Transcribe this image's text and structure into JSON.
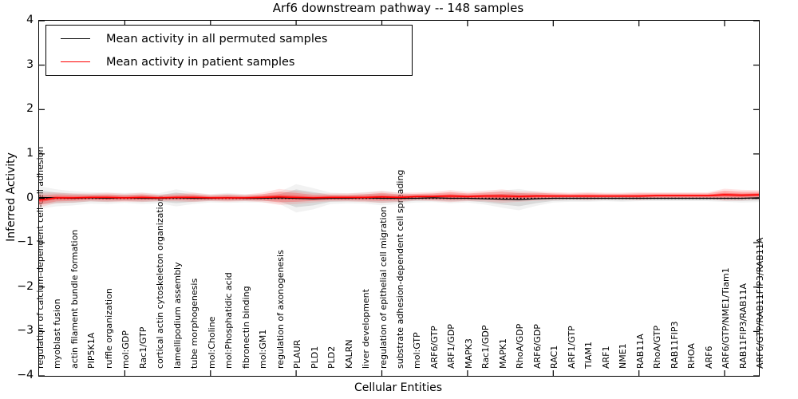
{
  "figure": {
    "title": "Arf6 downstream pathway -- 148 samples",
    "xlabel": "Cellular Entities",
    "ylabel": "Inferred Activity"
  },
  "legend": {
    "items": [
      {
        "label": "Mean activity in all permuted samples",
        "color": "#000000"
      },
      {
        "label": "Mean activity in patient samples",
        "color": "#ff0000"
      }
    ],
    "position": "upper left"
  },
  "chart_data": {
    "type": "line",
    "title": "Arf6 downstream pathway -- 148 samples",
    "xlabel": "Cellular Entities",
    "ylabel": "Inferred Activity",
    "ylim": [
      -4,
      4
    ],
    "yticks": [
      -4,
      -3,
      -2,
      -1,
      0,
      1,
      2,
      3,
      4
    ],
    "xtick_marks_every": 5,
    "grid": false,
    "legend_position": "upper left",
    "zero_line": {
      "style": "dotted",
      "color": "#000000",
      "y": 0
    },
    "categories": [
      "regulation of calcium-dependent cell-cell adhesion",
      "myoblast fusion",
      "actin filament bundle formation",
      "PIP5K1A",
      "ruffle organization",
      "mol:GDP",
      "Rac1/GTP",
      "cortical actin cytoskeleton organization",
      "lamellipodium assembly",
      "tube morphogenesis",
      "mol:Choline",
      "mol:Phosphatidic acid",
      "fibronectin binding",
      "mol:GM1",
      "regulation of axonogenesis",
      "PLAUR",
      "PLD1",
      "PLD2",
      "KALRN",
      "liver development",
      "regulation of epithelial cell migration",
      "substrate adhesion-dependent cell spreading",
      "mol:GTP",
      "ARF6/GTP",
      "ARF1/GDP",
      "MAPK3",
      "Rac1/GDP",
      "MAPK1",
      "RhoA/GDP",
      "ARF6/GDP",
      "RAC1",
      "ARF1/GTP",
      "TIAM1",
      "ARF1",
      "NME1",
      "RAB11A",
      "RhoA/GTP",
      "RAB11FIP3",
      "RHOA",
      "ARF6",
      "ARF6/GTP/NME1/Tiam1",
      "RAB11FIP3/RAB11A",
      "ARF6/GTP/RAB11FIP3/RAB11A"
    ],
    "series": [
      {
        "name": "Mean activity in all permuted samples",
        "color": "#000000",
        "line_style": "solid",
        "band_color": "#999999",
        "values": [
          0.02,
          0.01,
          0.0,
          0.01,
          0.0,
          0.01,
          0.0,
          0.0,
          0.01,
          0.0,
          0.0,
          0.01,
          0.0,
          0.0,
          0.01,
          0.0,
          -0.01,
          0.0,
          0.0,
          0.01,
          0.0,
          0.0,
          0.0,
          0.01,
          0.0,
          0.0,
          -0.01,
          -0.02,
          -0.03,
          -0.01,
          0.0,
          0.0,
          0.0,
          0.0,
          0.0,
          0.0,
          0.0,
          0.0,
          0.0,
          0.0,
          0.0,
          0.0,
          0.01
        ],
        "band_halfwidth": [
          0.16,
          0.12,
          0.1,
          0.08,
          0.08,
          0.07,
          0.08,
          0.07,
          0.12,
          0.08,
          0.06,
          0.07,
          0.06,
          0.06,
          0.08,
          0.2,
          0.15,
          0.08,
          0.07,
          0.08,
          0.1,
          0.08,
          0.06,
          0.06,
          0.07,
          0.06,
          0.08,
          0.12,
          0.15,
          0.1,
          0.06,
          0.05,
          0.05,
          0.04,
          0.05,
          0.04,
          0.04,
          0.04,
          0.04,
          0.04,
          0.05,
          0.06,
          0.06
        ]
      },
      {
        "name": "Mean activity in patient samples",
        "color": "#ff0000",
        "line_style": "solid",
        "band_color": "#ff4040",
        "values": [
          -0.04,
          0.01,
          0.01,
          0.02,
          0.02,
          0.01,
          0.02,
          0.01,
          0.02,
          0.02,
          0.01,
          0.01,
          0.01,
          0.02,
          0.03,
          0.02,
          0.01,
          0.02,
          0.02,
          0.02,
          0.03,
          0.02,
          0.04,
          0.04,
          0.05,
          0.04,
          0.05,
          0.05,
          0.04,
          0.05,
          0.05,
          0.05,
          0.05,
          0.05,
          0.05,
          0.05,
          0.06,
          0.06,
          0.06,
          0.06,
          0.08,
          0.07,
          0.08
        ],
        "band_halfwidth": [
          0.11,
          0.08,
          0.07,
          0.06,
          0.07,
          0.06,
          0.07,
          0.05,
          0.06,
          0.07,
          0.05,
          0.06,
          0.05,
          0.07,
          0.12,
          0.1,
          0.07,
          0.06,
          0.06,
          0.07,
          0.09,
          0.07,
          0.06,
          0.07,
          0.09,
          0.07,
          0.08,
          0.1,
          0.08,
          0.07,
          0.06,
          0.05,
          0.06,
          0.05,
          0.05,
          0.06,
          0.05,
          0.05,
          0.05,
          0.05,
          0.09,
          0.08,
          0.07
        ]
      }
    ]
  }
}
